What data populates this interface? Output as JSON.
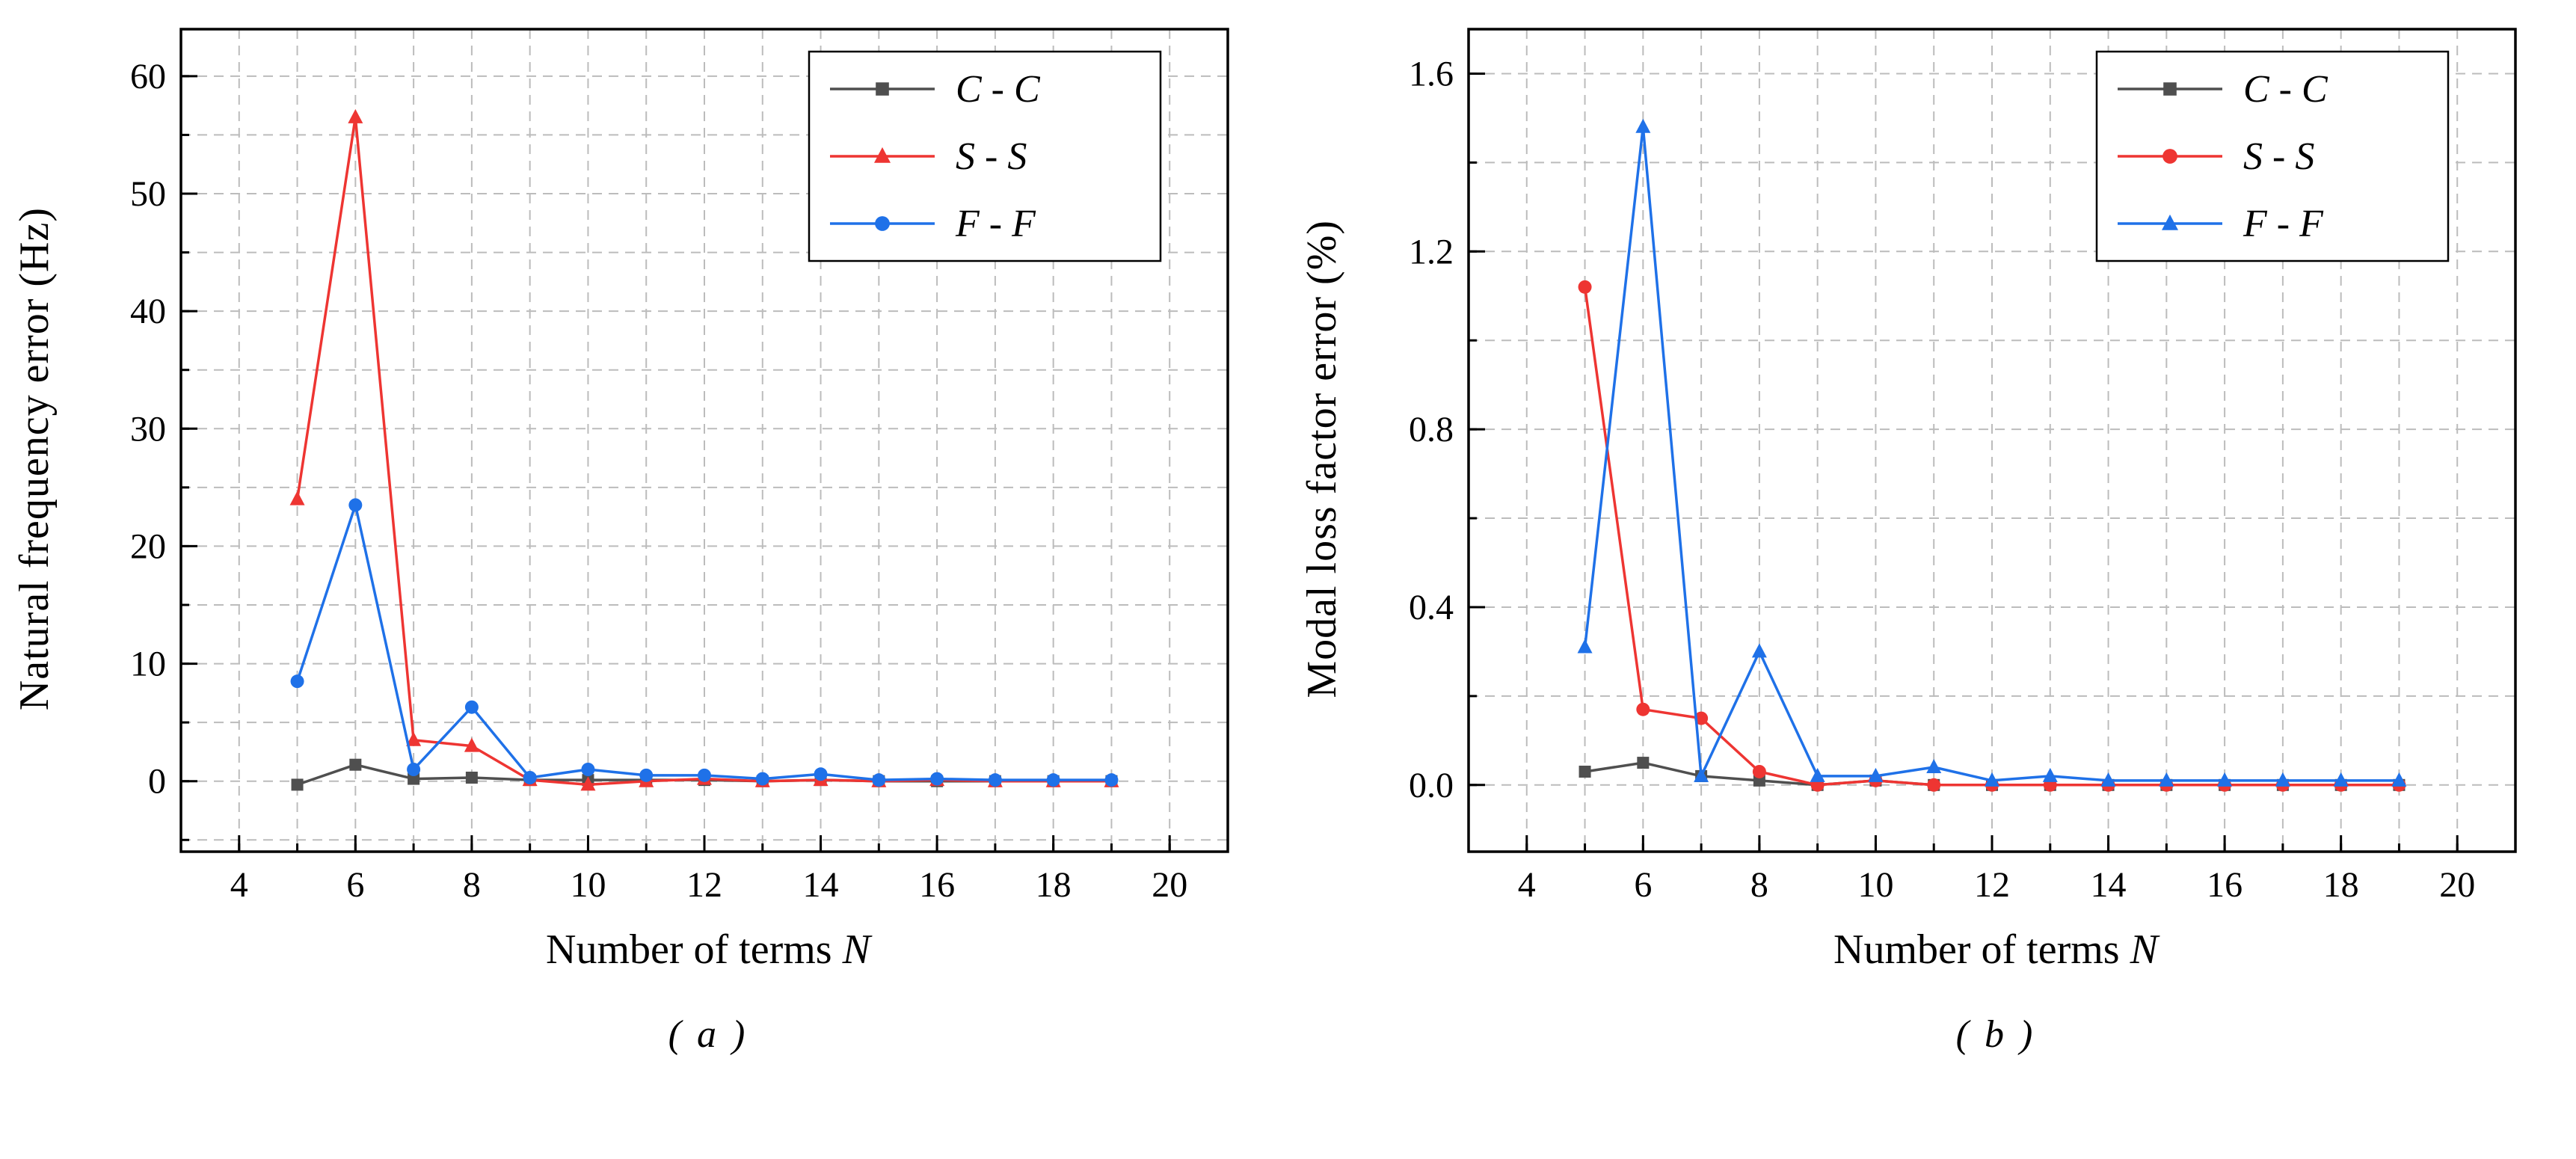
{
  "style": {
    "background": "#ffffff",
    "grid_color": "#bcbcbc",
    "axis_color": "#000000",
    "legend_border": "#000000",
    "series_colors": {
      "cc": "#4f4f4f",
      "ss": "#ee3532",
      "ff": "#1f71e8"
    }
  },
  "panels": [
    {
      "ylabel": "Natural frequency error (Hz)",
      "xlabel": "Number of terms",
      "xlabel_var": "N",
      "caption": "( a )"
    },
    {
      "ylabel": "Modal loss factor error (%)",
      "xlabel": "Number of terms",
      "xlabel_var": "N",
      "caption": "( b )"
    }
  ],
  "chart_data": [
    {
      "type": "line",
      "title": "",
      "xlabel": "Number of terms N",
      "ylabel": "Natural frequency error (Hz)",
      "xlim": [
        3,
        21
      ],
      "ylim": [
        -6,
        64
      ],
      "xticks": [
        4,
        6,
        8,
        10,
        12,
        14,
        16,
        18,
        20
      ],
      "xtick_labels": [
        "4",
        "6",
        "8",
        "10",
        "12",
        "14",
        "16",
        "18",
        "20"
      ],
      "yticks": [
        0,
        10,
        20,
        30,
        40,
        50,
        60
      ],
      "ytick_labels": [
        "0",
        "10",
        "20",
        "30",
        "40",
        "50",
        "60"
      ],
      "minor_x": 1,
      "minor_y": 5,
      "grid": true,
      "legend_position": "top-right",
      "x": [
        5,
        6,
        7,
        8,
        9,
        10,
        11,
        12,
        13,
        14,
        15,
        16,
        17,
        18,
        19
      ],
      "series": [
        {
          "name": "C - C",
          "marker": "square",
          "color": "#4f4f4f",
          "values": [
            -0.3,
            1.4,
            0.2,
            0.3,
            0.1,
            0.1,
            0.1,
            0.1,
            0.0,
            0.1,
            0.0,
            0.0,
            0.0,
            0.0,
            0.0
          ]
        },
        {
          "name": "S - S",
          "marker": "triangle",
          "color": "#ee3532",
          "values": [
            24.0,
            56.5,
            3.5,
            3.0,
            0.1,
            -0.3,
            0.0,
            0.2,
            0.0,
            0.1,
            0.0,
            0.1,
            0.0,
            0.0,
            0.0
          ]
        },
        {
          "name": "F - F",
          "marker": "circle",
          "color": "#1f71e8",
          "values": [
            8.5,
            23.5,
            1.0,
            6.3,
            0.3,
            1.0,
            0.5,
            0.5,
            0.2,
            0.6,
            0.1,
            0.2,
            0.1,
            0.1,
            0.1
          ]
        }
      ]
    },
    {
      "type": "line",
      "title": "",
      "xlabel": "Number of terms N",
      "ylabel": "Modal loss factor error (%)",
      "xlim": [
        3,
        21
      ],
      "ylim": [
        -0.15,
        1.7
      ],
      "xticks": [
        4,
        6,
        8,
        10,
        12,
        14,
        16,
        18,
        20
      ],
      "xtick_labels": [
        "4",
        "6",
        "8",
        "10",
        "12",
        "14",
        "16",
        "18",
        "20"
      ],
      "yticks": [
        0,
        0.4,
        0.8,
        1.2,
        1.6
      ],
      "ytick_labels": [
        "0.0",
        "0.4",
        "0.8",
        "1.2",
        "1.6"
      ],
      "minor_x": 1,
      "minor_y": 0.2,
      "grid": true,
      "legend_position": "top-right",
      "x": [
        5,
        6,
        7,
        8,
        9,
        10,
        11,
        12,
        13,
        14,
        15,
        16,
        17,
        18,
        19
      ],
      "series": [
        {
          "name": "C - C",
          "marker": "square",
          "color": "#4f4f4f",
          "values": [
            0.03,
            0.05,
            0.02,
            0.01,
            0.0,
            0.01,
            0.0,
            0.0,
            0.0,
            0.0,
            0.0,
            0.0,
            0.0,
            0.0,
            0.0
          ]
        },
        {
          "name": "S - S",
          "marker": "circle",
          "color": "#ee3532",
          "values": [
            1.12,
            0.17,
            0.15,
            0.03,
            0.0,
            0.01,
            0.0,
            0.0,
            0.0,
            0.0,
            0.0,
            0.0,
            0.0,
            0.0,
            0.0
          ]
        },
        {
          "name": "F - F",
          "marker": "triangle",
          "color": "#1f71e8",
          "values": [
            0.31,
            1.48,
            0.02,
            0.3,
            0.02,
            0.02,
            0.04,
            0.01,
            0.02,
            0.01,
            0.01,
            0.01,
            0.01,
            0.01,
            0.01
          ]
        }
      ]
    }
  ]
}
